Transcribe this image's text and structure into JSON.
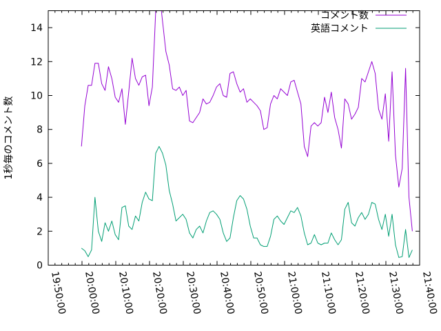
{
  "chart_data": {
    "type": "line",
    "ylabel": "1秒毎のコメント数",
    "xlabel": "",
    "title": "",
    "xlim": [
      "19:50:00",
      "21:40:00"
    ],
    "ylim": [
      0,
      15
    ],
    "xticks": [
      "19:50:00",
      "20:00:00",
      "20:10:00",
      "20:20:00",
      "20:30:00",
      "20:40:00",
      "20:50:00",
      "21:00:00",
      "21:10:00",
      "21:20:00",
      "21:30:00",
      "21:40:00"
    ],
    "yticks": [
      "0",
      "2",
      "4",
      "6",
      "8",
      "10",
      "12",
      "14"
    ],
    "grid": false,
    "legend_position": "top-right",
    "colors": {
      "series1": "#9400d3",
      "series2": "#009e73"
    },
    "series": [
      {
        "name": "コメント数",
        "points": [
          [
            "19:59:50",
            7.0
          ],
          [
            "20:00:50",
            9.4
          ],
          [
            "20:01:50",
            10.6
          ],
          [
            "20:02:50",
            10.6
          ],
          [
            "20:03:50",
            11.9
          ],
          [
            "20:04:50",
            11.9
          ],
          [
            "20:05:50",
            10.7
          ],
          [
            "20:06:50",
            10.3
          ],
          [
            "20:07:50",
            11.7
          ],
          [
            "20:08:50",
            11.0
          ],
          [
            "20:09:50",
            9.9
          ],
          [
            "20:10:50",
            9.6
          ],
          [
            "20:11:50",
            10.4
          ],
          [
            "20:12:50",
            8.3
          ],
          [
            "20:13:50",
            10.2
          ],
          [
            "20:14:50",
            12.2
          ],
          [
            "20:15:50",
            11.0
          ],
          [
            "20:16:50",
            10.6
          ],
          [
            "20:17:50",
            11.1
          ],
          [
            "20:18:50",
            11.2
          ],
          [
            "20:19:50",
            9.4
          ],
          [
            "20:20:50",
            10.5
          ],
          [
            "20:21:50",
            15.0
          ],
          [
            "20:22:30",
            15.0
          ],
          [
            "20:23:30",
            15.0
          ],
          [
            "20:24:50",
            12.6
          ],
          [
            "20:25:50",
            11.8
          ],
          [
            "20:26:50",
            10.4
          ],
          [
            "20:27:50",
            10.3
          ],
          [
            "20:28:50",
            10.5
          ],
          [
            "20:29:50",
            10.0
          ],
          [
            "20:30:50",
            10.3
          ],
          [
            "20:31:50",
            8.5
          ],
          [
            "20:32:50",
            8.4
          ],
          [
            "20:33:50",
            8.7
          ],
          [
            "20:34:50",
            9.0
          ],
          [
            "20:35:50",
            9.8
          ],
          [
            "20:36:50",
            9.5
          ],
          [
            "20:37:50",
            9.6
          ],
          [
            "20:38:50",
            10.0
          ],
          [
            "20:39:50",
            10.5
          ],
          [
            "20:40:50",
            10.7
          ],
          [
            "20:41:50",
            10.0
          ],
          [
            "20:42:50",
            9.9
          ],
          [
            "20:43:50",
            11.3
          ],
          [
            "20:44:50",
            11.4
          ],
          [
            "20:45:50",
            10.7
          ],
          [
            "20:46:50",
            10.2
          ],
          [
            "20:47:50",
            10.4
          ],
          [
            "20:48:50",
            9.6
          ],
          [
            "20:49:50",
            9.8
          ],
          [
            "20:50:50",
            9.6
          ],
          [
            "20:51:50",
            9.4
          ],
          [
            "20:52:50",
            9.1
          ],
          [
            "20:53:50",
            8.0
          ],
          [
            "20:54:50",
            8.1
          ],
          [
            "20:55:50",
            9.5
          ],
          [
            "20:56:50",
            10.0
          ],
          [
            "20:57:50",
            9.8
          ],
          [
            "20:58:50",
            10.4
          ],
          [
            "20:59:50",
            10.2
          ],
          [
            "21:00:50",
            10.0
          ],
          [
            "21:01:50",
            10.8
          ],
          [
            "21:02:50",
            10.9
          ],
          [
            "21:03:50",
            10.2
          ],
          [
            "21:04:50",
            9.5
          ],
          [
            "21:05:50",
            7.0
          ],
          [
            "21:06:50",
            6.4
          ],
          [
            "21:07:50",
            8.2
          ],
          [
            "21:08:50",
            8.4
          ],
          [
            "21:09:50",
            8.2
          ],
          [
            "21:10:50",
            8.4
          ],
          [
            "21:11:50",
            9.9
          ],
          [
            "21:12:50",
            9.0
          ],
          [
            "21:13:50",
            10.2
          ],
          [
            "21:14:50",
            8.7
          ],
          [
            "21:15:50",
            8.0
          ],
          [
            "21:16:50",
            6.9
          ],
          [
            "21:17:50",
            9.8
          ],
          [
            "21:18:50",
            9.5
          ],
          [
            "21:19:50",
            8.6
          ],
          [
            "21:20:50",
            8.9
          ],
          [
            "21:21:50",
            9.3
          ],
          [
            "21:22:50",
            11.0
          ],
          [
            "21:23:50",
            10.8
          ],
          [
            "21:24:50",
            11.4
          ],
          [
            "21:25:50",
            12.0
          ],
          [
            "21:26:50",
            11.3
          ],
          [
            "21:27:50",
            9.2
          ],
          [
            "21:28:50",
            8.6
          ],
          [
            "21:29:50",
            10.1
          ],
          [
            "21:30:50",
            7.3
          ],
          [
            "21:31:50",
            11.4
          ],
          [
            "21:32:50",
            6.5
          ],
          [
            "21:33:50",
            4.6
          ],
          [
            "21:34:50",
            5.7
          ],
          [
            "21:35:50",
            11.6
          ],
          [
            "21:36:50",
            4.0
          ],
          [
            "21:37:50",
            2.0
          ]
        ]
      },
      {
        "name": "英語コメント",
        "points": [
          [
            "19:59:50",
            1.0
          ],
          [
            "20:00:50",
            0.85
          ],
          [
            "20:01:50",
            0.5
          ],
          [
            "20:02:50",
            0.9
          ],
          [
            "20:03:50",
            4.0
          ],
          [
            "20:04:50",
            2.0
          ],
          [
            "20:05:50",
            1.4
          ],
          [
            "20:06:50",
            2.5
          ],
          [
            "20:07:50",
            2.0
          ],
          [
            "20:08:50",
            2.6
          ],
          [
            "20:09:50",
            1.8
          ],
          [
            "20:10:50",
            1.5
          ],
          [
            "20:11:50",
            3.4
          ],
          [
            "20:12:50",
            3.5
          ],
          [
            "20:13:50",
            2.3
          ],
          [
            "20:14:50",
            2.1
          ],
          [
            "20:15:50",
            2.9
          ],
          [
            "20:16:50",
            2.6
          ],
          [
            "20:17:50",
            3.7
          ],
          [
            "20:18:50",
            4.3
          ],
          [
            "20:19:50",
            3.9
          ],
          [
            "20:20:50",
            3.8
          ],
          [
            "20:21:50",
            6.6
          ],
          [
            "20:22:50",
            7.0
          ],
          [
            "20:23:50",
            6.6
          ],
          [
            "20:24:50",
            5.9
          ],
          [
            "20:25:50",
            4.4
          ],
          [
            "20:26:50",
            3.6
          ],
          [
            "20:27:50",
            2.6
          ],
          [
            "20:28:50",
            2.8
          ],
          [
            "20:29:50",
            3.0
          ],
          [
            "20:30:50",
            2.7
          ],
          [
            "20:31:50",
            1.9
          ],
          [
            "20:32:50",
            1.6
          ],
          [
            "20:33:50",
            2.1
          ],
          [
            "20:34:50",
            2.3
          ],
          [
            "20:35:50",
            1.9
          ],
          [
            "20:36:50",
            2.6
          ],
          [
            "20:37:50",
            3.1
          ],
          [
            "20:38:50",
            3.2
          ],
          [
            "20:39:50",
            3.0
          ],
          [
            "20:40:50",
            2.7
          ],
          [
            "20:41:50",
            1.9
          ],
          [
            "20:42:50",
            1.4
          ],
          [
            "20:43:50",
            1.6
          ],
          [
            "20:44:50",
            2.8
          ],
          [
            "20:45:50",
            3.8
          ],
          [
            "20:46:50",
            4.1
          ],
          [
            "20:47:50",
            3.9
          ],
          [
            "20:48:50",
            3.3
          ],
          [
            "20:49:50",
            2.3
          ],
          [
            "20:50:50",
            1.6
          ],
          [
            "20:51:50",
            1.6
          ],
          [
            "20:52:50",
            1.2
          ],
          [
            "20:53:50",
            1.1
          ],
          [
            "20:54:50",
            1.1
          ],
          [
            "20:55:50",
            1.7
          ],
          [
            "20:56:50",
            2.7
          ],
          [
            "20:57:50",
            2.9
          ],
          [
            "20:58:50",
            2.6
          ],
          [
            "20:59:50",
            2.4
          ],
          [
            "21:00:50",
            2.8
          ],
          [
            "21:01:50",
            3.2
          ],
          [
            "21:02:50",
            3.1
          ],
          [
            "21:03:50",
            3.4
          ],
          [
            "21:04:50",
            2.9
          ],
          [
            "21:05:50",
            1.9
          ],
          [
            "21:06:50",
            1.2
          ],
          [
            "21:07:50",
            1.3
          ],
          [
            "21:08:50",
            1.8
          ],
          [
            "21:09:50",
            1.3
          ],
          [
            "21:10:50",
            1.2
          ],
          [
            "21:11:50",
            1.3
          ],
          [
            "21:12:50",
            1.3
          ],
          [
            "21:13:50",
            1.9
          ],
          [
            "21:14:50",
            1.5
          ],
          [
            "21:15:50",
            1.2
          ],
          [
            "21:16:50",
            1.5
          ],
          [
            "21:17:50",
            3.3
          ],
          [
            "21:18:50",
            3.7
          ],
          [
            "21:19:50",
            2.5
          ],
          [
            "21:20:50",
            2.3
          ],
          [
            "21:21:50",
            2.8
          ],
          [
            "21:22:50",
            3.1
          ],
          [
            "21:23:50",
            2.7
          ],
          [
            "21:24:50",
            3.0
          ],
          [
            "21:25:50",
            3.7
          ],
          [
            "21:26:50",
            3.6
          ],
          [
            "21:27:50",
            2.7
          ],
          [
            "21:28:50",
            2.1
          ],
          [
            "21:29:50",
            3.0
          ],
          [
            "21:30:50",
            1.7
          ],
          [
            "21:31:50",
            3.0
          ],
          [
            "21:32:50",
            1.2
          ],
          [
            "21:33:50",
            0.45
          ],
          [
            "21:34:50",
            0.5
          ],
          [
            "21:35:50",
            2.1
          ],
          [
            "21:36:50",
            0.45
          ],
          [
            "21:37:50",
            0.9
          ]
        ]
      }
    ]
  }
}
